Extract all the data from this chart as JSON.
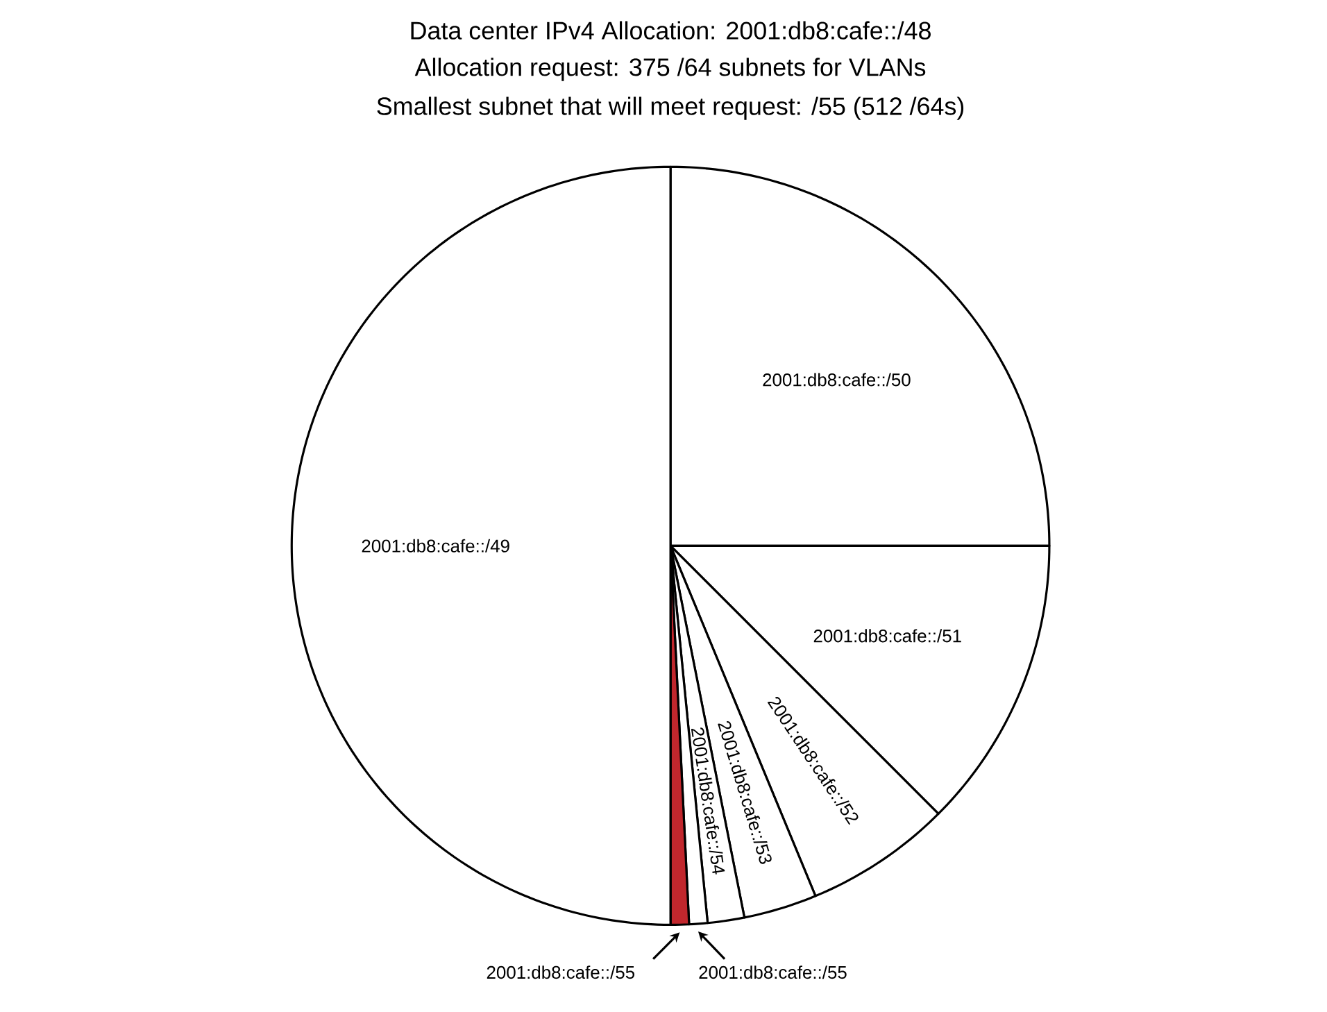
{
  "chart_data": {
    "type": "pie",
    "title": "Data center IPv4 Allocation: 2001:db8:cafe::/48",
    "subtitle": "Allocation request: 375 /64 subnets for VLANs",
    "annotations": [
      "Smallest subnet that will meet request: /55 (512 /64s)"
    ],
    "categories": [
      "2001:db8:cafe::/50",
      "2001:db8:cafe::/51",
      "2001:db8:cafe::/52",
      "2001:db8:cafe::/53",
      "2001:db8:cafe::/54",
      "2001:db8:cafe::/55",
      "2001:db8:cafe::/55",
      "2001:db8:cafe::/49"
    ],
    "values": [
      25,
      12.5,
      6.25,
      3.125,
      1.5625,
      0.78125,
      0.78125,
      50
    ],
    "colors": [
      "#ffffff",
      "#ffffff",
      "#ffffff",
      "#ffffff",
      "#ffffff",
      "#ffffff",
      "#c1272d",
      "#ffffff"
    ]
  }
}
